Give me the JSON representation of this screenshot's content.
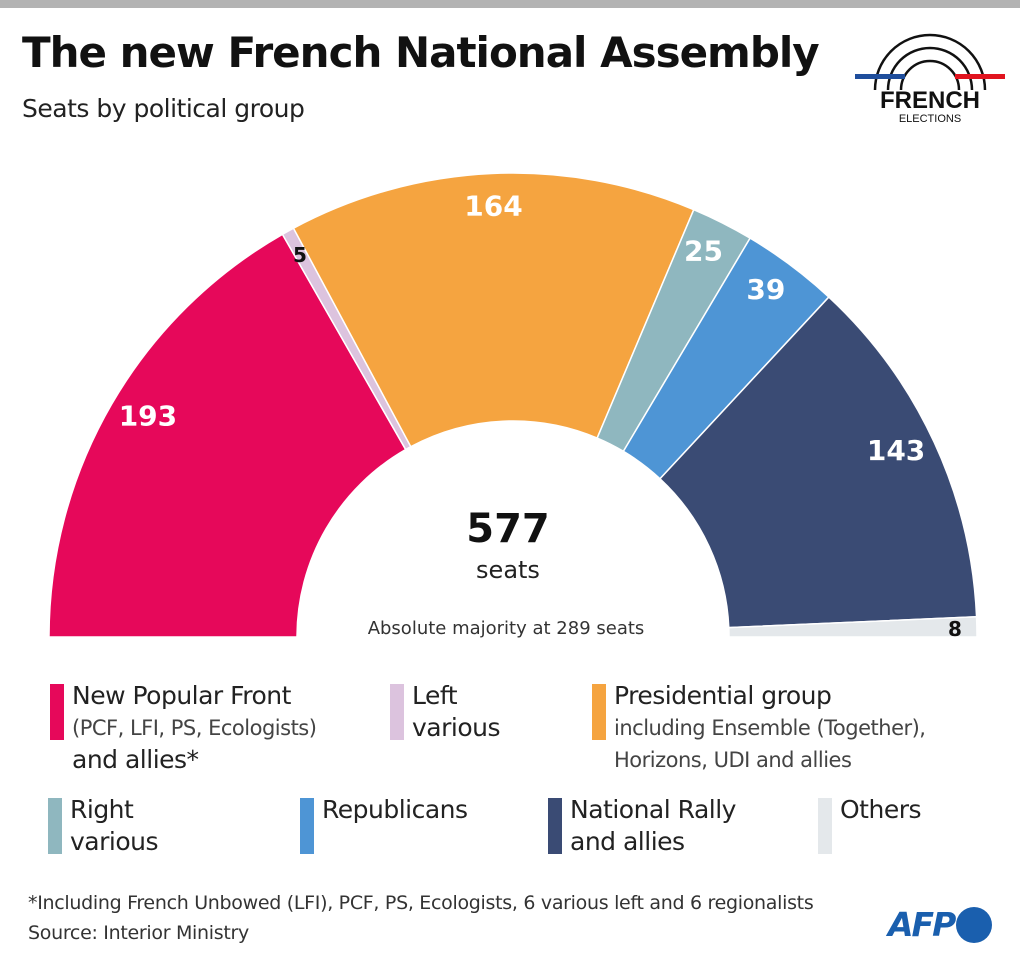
{
  "header": {
    "title": "The new French National Assembly",
    "subtitle": "Seats by political group"
  },
  "logo": {
    "line1": "FRENCH",
    "line2": "ELECTIONS"
  },
  "chart_data": {
    "type": "pie",
    "shape": "hemicycle",
    "total": 577,
    "center_label": {
      "value": "577",
      "unit": "seats"
    },
    "annotation": "Absolute majority at 289 seats",
    "categories": [
      "New Popular Front",
      "Left various",
      "Presidential group",
      "Right various",
      "Republicans",
      "National Rally and allies",
      "Others"
    ],
    "values": [
      193,
      5,
      164,
      25,
      39,
      143,
      8
    ],
    "colors": [
      "#e6085a",
      "#dcc3de",
      "#f5a440",
      "#8fb7bf",
      "#4e95d5",
      "#3a4b74",
      "#e4e8eb"
    ],
    "label_colors": [
      "#ffffff",
      "#111111",
      "#ffffff",
      "#ffffff",
      "#ffffff",
      "#ffffff",
      "#111111"
    ]
  },
  "legend": [
    {
      "name": "New Popular Front",
      "sub": "(PCF, LFI, PS, Ecologists)",
      "extra": "and allies*",
      "color": "#e6085a"
    },
    {
      "name": "Left",
      "extra": "various",
      "color": "#dcc3de"
    },
    {
      "name": "Presidential group",
      "sub": "including Ensemble (Together),",
      "sub2": "Horizons, UDI and allies",
      "color": "#f5a440"
    },
    {
      "name": "Right",
      "extra": "various",
      "color": "#8fb7bf"
    },
    {
      "name": "Republicans",
      "color": "#4e95d5"
    },
    {
      "name": "National Rally",
      "extra": "and allies",
      "color": "#3a4b74"
    },
    {
      "name": "Others",
      "color": "#e4e8eb"
    }
  ],
  "footer": {
    "note": "*Including French Unbowed (LFI), PCF, PS, Ecologists, 6 various left and 6 regionalists",
    "source": "Source: Interior Ministry",
    "brand": "AFP"
  }
}
